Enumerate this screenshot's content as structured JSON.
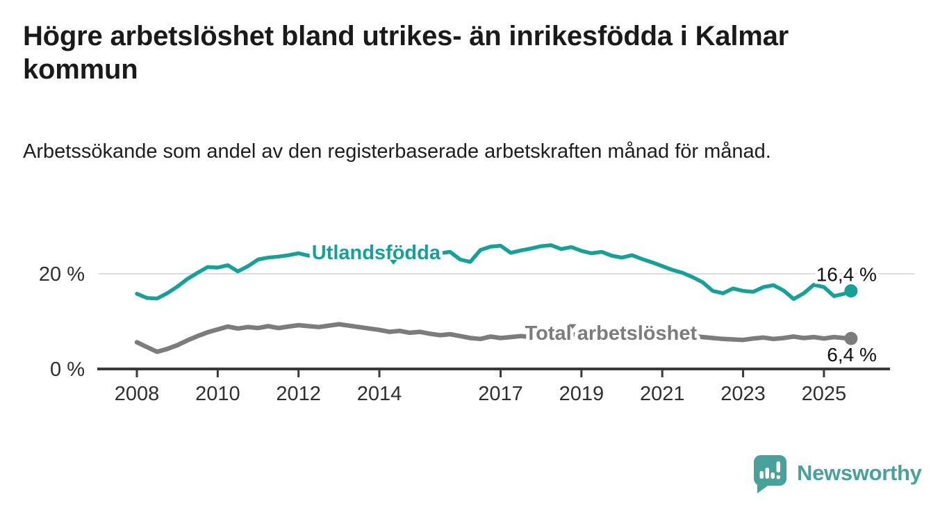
{
  "header": {
    "title": "Högre arbetslöshet bland utrikes- än inrikesfödda i Kalmar kommun",
    "subtitle": "Arbetssökande som andel av den registerbaserade arbetskraften månad för månad."
  },
  "branding": {
    "logo_text": "Newsworthy",
    "logo_color": "#47a29c"
  },
  "chart_data": {
    "type": "line",
    "title": "Högre arbetslöshet bland utrikes- än inrikesfödda i Kalmar kommun",
    "subtitle": "Arbetssökande som andel av den registerbaserade arbetskraften månad för månad.",
    "grid": "horizontal-only",
    "legend_position": "inline-labels",
    "x_axis": {
      "range": [
        2007.05,
        2026.6
      ],
      "ticks": [
        2008,
        2010,
        2012,
        2014,
        2017,
        2019,
        2021,
        2023,
        2025
      ],
      "tick_labels": [
        "2008",
        "2010",
        "2012",
        "2014",
        "2017",
        "2019",
        "2021",
        "2023",
        "2025"
      ]
    },
    "y_axis": {
      "unit": "%",
      "range": [
        0,
        29
      ],
      "ticks": [
        0,
        20
      ],
      "tick_labels": [
        "0 %",
        "20 %"
      ],
      "gridlines": [
        20
      ]
    },
    "colors": {
      "axis": "#3a3a3a",
      "gridline": "#dcdcdc",
      "tick_text": "#2f2f2f",
      "value_label_text": "#111111"
    },
    "series": [
      {
        "name": "Utlandsfödda",
        "color": "#14a296",
        "line_width": 5.5,
        "end_value": 16.4,
        "end_label": "16,4 %",
        "inline_label": {
          "year": 2013.92,
          "value": 24.6,
          "marker_year": 2014.35,
          "marker_value": 21.9
        },
        "points": [
          [
            2008.0,
            15.8
          ],
          [
            2008.25,
            14.9
          ],
          [
            2008.5,
            14.8
          ],
          [
            2008.75,
            15.9
          ],
          [
            2009.0,
            17.3
          ],
          [
            2009.25,
            18.9
          ],
          [
            2009.5,
            20.2
          ],
          [
            2009.75,
            21.4
          ],
          [
            2010.0,
            21.3
          ],
          [
            2010.25,
            21.8
          ],
          [
            2010.5,
            20.5
          ],
          [
            2010.75,
            21.6
          ],
          [
            2011.0,
            23.0
          ],
          [
            2011.25,
            23.4
          ],
          [
            2011.5,
            23.6
          ],
          [
            2011.75,
            23.9
          ],
          [
            2012.0,
            24.3
          ],
          [
            2012.25,
            23.8
          ],
          [
            2012.5,
            24.4
          ],
          [
            2012.75,
            24.8
          ],
          [
            2013.0,
            25.0
          ],
          [
            2013.25,
            25.3
          ],
          [
            2013.5,
            25.1
          ],
          [
            2013.75,
            24.8
          ],
          [
            2014.0,
            25.0
          ],
          [
            2014.25,
            24.6
          ],
          [
            2014.5,
            24.9
          ],
          [
            2014.75,
            24.4
          ],
          [
            2015.0,
            24.1
          ],
          [
            2015.25,
            24.5
          ],
          [
            2015.5,
            24.3
          ],
          [
            2015.75,
            24.6
          ],
          [
            2016.0,
            23.0
          ],
          [
            2016.25,
            22.5
          ],
          [
            2016.5,
            25.0
          ],
          [
            2016.75,
            25.7
          ],
          [
            2017.0,
            25.9
          ],
          [
            2017.25,
            24.4
          ],
          [
            2017.5,
            24.9
          ],
          [
            2017.75,
            25.3
          ],
          [
            2018.0,
            25.8
          ],
          [
            2018.25,
            26.0
          ],
          [
            2018.5,
            25.2
          ],
          [
            2018.75,
            25.6
          ],
          [
            2019.0,
            24.8
          ],
          [
            2019.25,
            24.3
          ],
          [
            2019.5,
            24.6
          ],
          [
            2019.75,
            23.8
          ],
          [
            2020.0,
            23.4
          ],
          [
            2020.25,
            23.9
          ],
          [
            2020.5,
            23.1
          ],
          [
            2020.75,
            22.4
          ],
          [
            2021.0,
            21.6
          ],
          [
            2021.25,
            20.8
          ],
          [
            2021.5,
            20.2
          ],
          [
            2021.75,
            19.3
          ],
          [
            2022.0,
            18.2
          ],
          [
            2022.25,
            16.4
          ],
          [
            2022.5,
            15.9
          ],
          [
            2022.75,
            16.9
          ],
          [
            2023.0,
            16.4
          ],
          [
            2023.25,
            16.2
          ],
          [
            2023.5,
            17.2
          ],
          [
            2023.75,
            17.6
          ],
          [
            2024.0,
            16.5
          ],
          [
            2024.25,
            14.7
          ],
          [
            2024.5,
            15.9
          ],
          [
            2024.75,
            17.7
          ],
          [
            2025.0,
            17.2
          ],
          [
            2025.25,
            15.3
          ],
          [
            2025.5,
            15.8
          ],
          [
            2025.67,
            16.4
          ]
        ]
      },
      {
        "name": "Total arbetslöshet",
        "color": "#7c7c7c",
        "line_width": 6.5,
        "end_value": 6.4,
        "end_label": "6,4 %",
        "inline_label": {
          "year": 2019.73,
          "value": 7.7,
          "marker_year": 2018.78,
          "marker_value": 8.4
        },
        "points": [
          [
            2008.0,
            5.6
          ],
          [
            2008.25,
            4.6
          ],
          [
            2008.5,
            3.6
          ],
          [
            2008.75,
            4.2
          ],
          [
            2009.0,
            5.0
          ],
          [
            2009.25,
            6.0
          ],
          [
            2009.5,
            6.9
          ],
          [
            2009.75,
            7.7
          ],
          [
            2010.0,
            8.3
          ],
          [
            2010.25,
            8.9
          ],
          [
            2010.5,
            8.5
          ],
          [
            2010.75,
            8.8
          ],
          [
            2011.0,
            8.6
          ],
          [
            2011.25,
            9.0
          ],
          [
            2011.5,
            8.6
          ],
          [
            2011.75,
            8.9
          ],
          [
            2012.0,
            9.2
          ],
          [
            2012.25,
            9.0
          ],
          [
            2012.5,
            8.8
          ],
          [
            2012.75,
            9.1
          ],
          [
            2013.0,
            9.4
          ],
          [
            2013.25,
            9.1
          ],
          [
            2013.5,
            8.8
          ],
          [
            2013.75,
            8.5
          ],
          [
            2014.0,
            8.2
          ],
          [
            2014.25,
            7.8
          ],
          [
            2014.5,
            8.0
          ],
          [
            2014.75,
            7.6
          ],
          [
            2015.0,
            7.8
          ],
          [
            2015.25,
            7.4
          ],
          [
            2015.5,
            7.1
          ],
          [
            2015.75,
            7.3
          ],
          [
            2016.0,
            6.9
          ],
          [
            2016.25,
            6.5
          ],
          [
            2016.5,
            6.3
          ],
          [
            2016.75,
            6.8
          ],
          [
            2017.0,
            6.5
          ],
          [
            2017.25,
            6.7
          ],
          [
            2017.5,
            6.9
          ],
          [
            2017.75,
            6.7
          ],
          [
            2018.0,
            7.0
          ],
          [
            2018.25,
            7.2
          ],
          [
            2018.5,
            7.0
          ],
          [
            2018.75,
            7.3
          ],
          [
            2019.0,
            7.1
          ],
          [
            2019.25,
            7.4
          ],
          [
            2019.5,
            7.2
          ],
          [
            2019.75,
            7.5
          ],
          [
            2020.0,
            7.8
          ],
          [
            2020.25,
            8.6
          ],
          [
            2020.5,
            8.3
          ],
          [
            2020.75,
            8.0
          ],
          [
            2021.0,
            7.8
          ],
          [
            2021.25,
            7.5
          ],
          [
            2021.5,
            7.2
          ],
          [
            2021.75,
            6.9
          ],
          [
            2022.0,
            6.7
          ],
          [
            2022.25,
            6.5
          ],
          [
            2022.5,
            6.3
          ],
          [
            2022.75,
            6.2
          ],
          [
            2023.0,
            6.1
          ],
          [
            2023.25,
            6.4
          ],
          [
            2023.5,
            6.6
          ],
          [
            2023.75,
            6.3
          ],
          [
            2024.0,
            6.5
          ],
          [
            2024.25,
            6.8
          ],
          [
            2024.5,
            6.5
          ],
          [
            2024.75,
            6.7
          ],
          [
            2025.0,
            6.4
          ],
          [
            2025.25,
            6.7
          ],
          [
            2025.5,
            6.5
          ],
          [
            2025.67,
            6.4
          ]
        ]
      }
    ]
  }
}
